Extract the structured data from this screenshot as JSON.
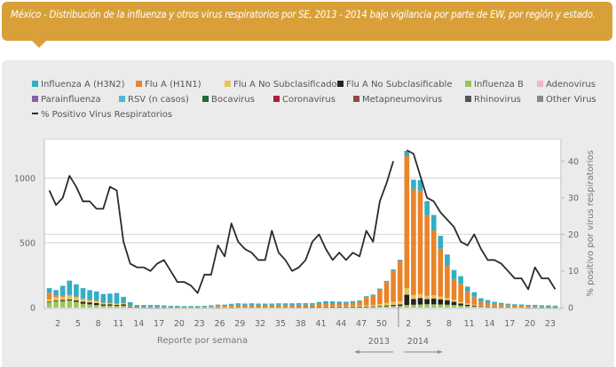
{
  "banner": {
    "title": "México - Distribución de la influenza y otros virus respiratorios por SE, 2013 - 2014 bajo vigilancia por parte de EW, por región y estado."
  },
  "chart_data": {
    "type": "bar",
    "stacked": true,
    "title": "México - Distribución de la influenza y otros virus respiratorios por SE, 2013 - 2014 bajo vigilancia por parte de EW, por región y estado.",
    "xlabel": "Reporte por semana",
    "ylabel": "",
    "y2label": "% positivo por virus respiratorios",
    "ylim": [
      0,
      1300
    ],
    "y2lim": [
      0,
      46
    ],
    "yticks": [
      0,
      500,
      1000
    ],
    "y2ticks": [
      0,
      10,
      20,
      30,
      40
    ],
    "grid": true,
    "legend_position": "top",
    "x_tick_labels": [
      "2",
      "5",
      "8",
      "11",
      "14",
      "17",
      "20",
      "23",
      "26",
      "29",
      "32",
      "35",
      "38",
      "41",
      "44",
      "47",
      "50",
      "2",
      "5",
      "8",
      "11",
      "14",
      "17",
      "20",
      "23"
    ],
    "year_labels": [
      {
        "label": "2013",
        "arrow": "left"
      },
      {
        "label": "2014",
        "arrow": "right"
      }
    ],
    "categories": [
      "2013-01",
      "2013-02",
      "2013-03",
      "2013-04",
      "2013-05",
      "2013-06",
      "2013-07",
      "2013-08",
      "2013-09",
      "2013-10",
      "2013-11",
      "2013-12",
      "2013-13",
      "2013-14",
      "2013-15",
      "2013-16",
      "2013-17",
      "2013-18",
      "2013-19",
      "2013-20",
      "2013-21",
      "2013-22",
      "2013-23",
      "2013-24",
      "2013-25",
      "2013-26",
      "2013-27",
      "2013-28",
      "2013-29",
      "2013-30",
      "2013-31",
      "2013-32",
      "2013-33",
      "2013-34",
      "2013-35",
      "2013-36",
      "2013-37",
      "2013-38",
      "2013-39",
      "2013-40",
      "2013-41",
      "2013-42",
      "2013-43",
      "2013-44",
      "2013-45",
      "2013-46",
      "2013-47",
      "2013-48",
      "2013-49",
      "2013-50",
      "2013-51",
      "2013-52",
      "2014-01",
      "2014-02",
      "2014-03",
      "2014-04",
      "2014-05",
      "2014-06",
      "2014-07",
      "2014-08",
      "2014-09",
      "2014-10",
      "2014-11",
      "2014-12",
      "2014-13",
      "2014-14",
      "2014-15",
      "2014-16",
      "2014-17",
      "2014-18",
      "2014-19",
      "2014-20",
      "2014-21",
      "2014-22",
      "2014-23",
      "2014-24"
    ],
    "series": [
      {
        "name": "Influenza B",
        "color": "#9dc45a",
        "values": [
          40,
          50,
          50,
          55,
          45,
          30,
          25,
          20,
          15,
          15,
          12,
          15,
          5,
          3,
          2,
          2,
          2,
          2,
          1,
          1,
          1,
          1,
          1,
          1,
          2,
          2,
          2,
          2,
          3,
          3,
          3,
          3,
          3,
          3,
          3,
          3,
          3,
          3,
          3,
          3,
          4,
          4,
          4,
          4,
          4,
          5,
          5,
          6,
          6,
          8,
          10,
          12,
          14,
          20,
          22,
          24,
          26,
          25,
          24,
          22,
          20,
          16,
          12,
          10,
          8,
          6,
          5,
          4,
          4,
          3,
          3,
          2,
          2,
          2,
          2,
          2
        ]
      },
      {
        "name": "Flu A No Subclasificable",
        "color": "#222222",
        "values": [
          5,
          5,
          8,
          8,
          10,
          15,
          15,
          15,
          10,
          10,
          8,
          10,
          2,
          1,
          1,
          1,
          1,
          1,
          0,
          0,
          0,
          0,
          0,
          0,
          0,
          1,
          0,
          1,
          1,
          1,
          1,
          1,
          1,
          1,
          1,
          1,
          1,
          1,
          1,
          1,
          2,
          2,
          2,
          2,
          2,
          2,
          2,
          2,
          3,
          4,
          6,
          8,
          10,
          80,
          45,
          50,
          40,
          45,
          40,
          35,
          25,
          15,
          10,
          6,
          4,
          3,
          2,
          2,
          2,
          1,
          1,
          1,
          1,
          1,
          1,
          1
        ]
      },
      {
        "name": "Flu A No Subclasificado",
        "color": "#e8c25a",
        "values": [
          20,
          25,
          25,
          30,
          25,
          20,
          15,
          15,
          10,
          8,
          8,
          8,
          3,
          2,
          1,
          1,
          1,
          1,
          1,
          1,
          1,
          1,
          1,
          1,
          1,
          2,
          1,
          2,
          2,
          2,
          2,
          2,
          2,
          2,
          2,
          2,
          2,
          3,
          3,
          3,
          4,
          5,
          5,
          5,
          5,
          6,
          8,
          10,
          12,
          15,
          20,
          25,
          25,
          50,
          30,
          30,
          25,
          25,
          20,
          18,
          15,
          12,
          10,
          8,
          5,
          4,
          3,
          3,
          2,
          2,
          2,
          2,
          2,
          2,
          2,
          2
        ]
      },
      {
        "name": "Flu A (H1N1)",
        "color": "#e8842a",
        "values": [
          50,
          15,
          10,
          5,
          5,
          5,
          5,
          5,
          5,
          5,
          5,
          5,
          2,
          2,
          1,
          1,
          1,
          1,
          1,
          1,
          1,
          2,
          2,
          3,
          5,
          8,
          10,
          12,
          15,
          15,
          15,
          15,
          15,
          15,
          15,
          15,
          15,
          15,
          15,
          15,
          18,
          20,
          20,
          20,
          20,
          25,
          30,
          60,
          70,
          110,
          160,
          240,
          310,
          1020,
          820,
          800,
          620,
          500,
          370,
          250,
          160,
          140,
          90,
          60,
          30,
          25,
          20,
          15,
          12,
          10,
          8,
          6,
          4,
          3,
          2,
          2
        ]
      },
      {
        "name": "Influenza A (H3N2)",
        "color": "#33aec5",
        "values": [
          35,
          40,
          75,
          110,
          95,
          80,
          75,
          70,
          65,
          70,
          80,
          45,
          30,
          12,
          15,
          15,
          15,
          12,
          10,
          10,
          8,
          8,
          8,
          8,
          10,
          10,
          10,
          12,
          12,
          10,
          12,
          10,
          10,
          10,
          12,
          12,
          12,
          12,
          12,
          12,
          15,
          18,
          18,
          15,
          14,
          12,
          10,
          10,
          10,
          10,
          10,
          10,
          10,
          40,
          70,
          80,
          110,
          120,
          100,
          85,
          70,
          60,
          40,
          35,
          25,
          20,
          15,
          12,
          10,
          10,
          10,
          10,
          12,
          10,
          10,
          8
        ]
      },
      {
        "name": "Parainfluenza",
        "color": "#8e5ea2",
        "values": []
      },
      {
        "name": "RSV (n casos)",
        "color": "#4bb8d5",
        "values": []
      },
      {
        "name": "Bocavirus",
        "color": "#1e6b32",
        "values": []
      },
      {
        "name": "Coronavirus",
        "color": "#b01c3a",
        "values": []
      },
      {
        "name": "Metapneumovirus",
        "color": "#8c4a3e",
        "values": []
      },
      {
        "name": "Rhinovirus",
        "color": "#555555",
        "values": []
      },
      {
        "name": "Adenovirus",
        "color": "#f2b6c6",
        "values": []
      },
      {
        "name": "Other Virus",
        "color": "#888888",
        "values": []
      }
    ],
    "line_series": {
      "name": "% Positivo Virus Respiratorios",
      "color": "#2b2b2b",
      "axis": "right",
      "values": [
        32,
        28,
        30,
        36,
        33,
        29,
        29,
        27,
        27,
        33,
        32,
        18,
        12,
        11,
        11,
        10,
        12,
        13,
        10,
        7,
        7,
        6,
        4,
        9,
        9,
        17,
        14,
        23,
        18,
        16,
        15,
        13,
        13,
        21,
        15,
        13,
        10,
        11,
        13,
        18,
        20,
        16,
        13,
        15,
        13,
        15,
        14,
        21,
        18,
        29,
        34,
        40,
        null,
        43,
        42,
        36,
        30,
        29,
        26,
        24,
        22,
        18,
        17,
        20,
        16,
        13,
        13,
        12,
        10,
        8,
        8,
        5,
        11,
        8,
        8,
        5
      ]
    },
    "legend": [
      "Influenza A (H3N2)",
      "Flu A (H1N1)",
      "Flu A No Subclasificado",
      "Flu A No Subclasificable",
      "Influenza B",
      "Adenovirus",
      "Parainfluenza",
      "RSV (n casos)",
      "Bocavirus",
      "Coronavirus",
      "Metapneumovirus",
      "Rhinovirus",
      "Other Virus",
      "% Positivo Virus Respiratorios"
    ]
  }
}
